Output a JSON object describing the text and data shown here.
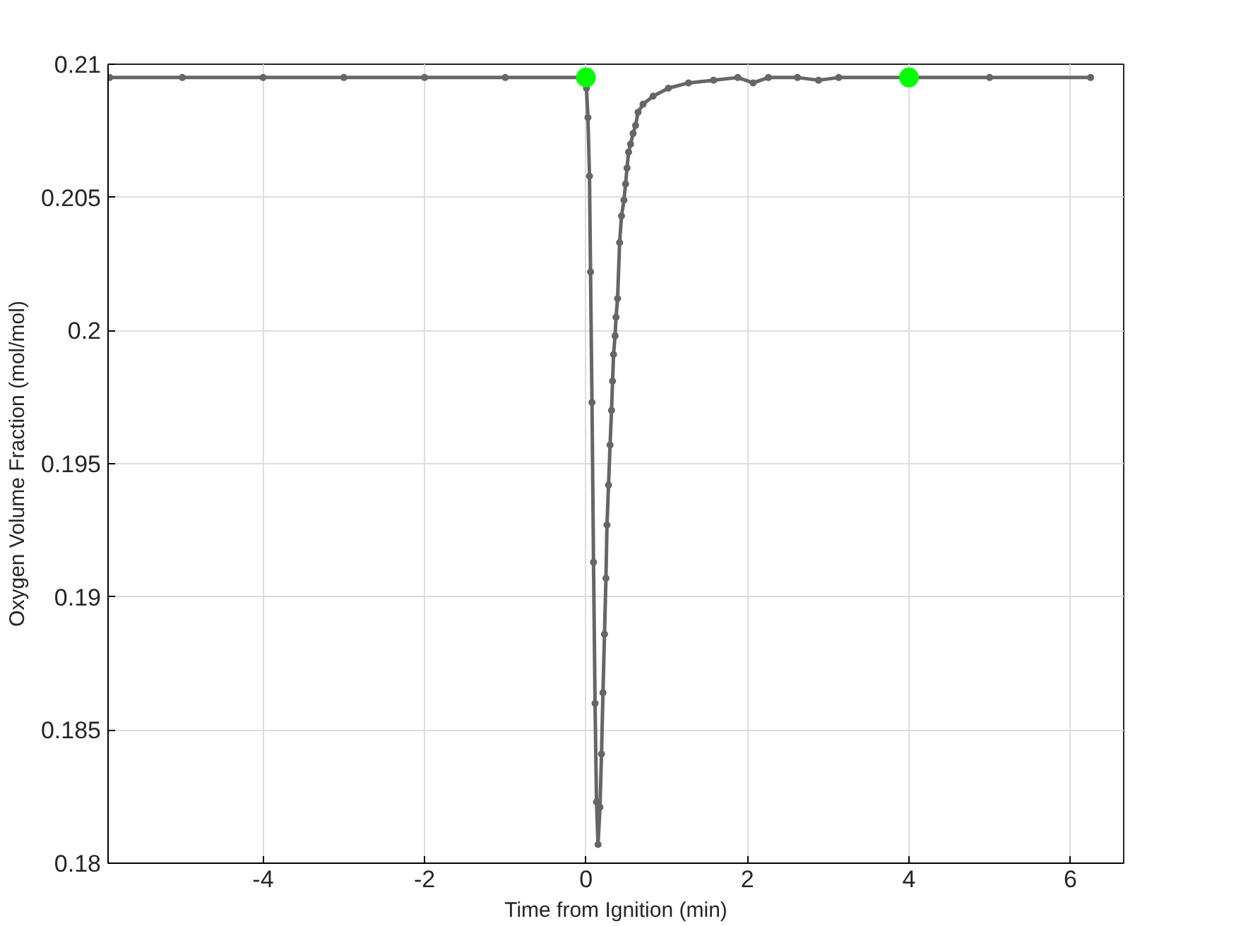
{
  "chart_data": {
    "type": "line",
    "xlabel": "Time from Ignition (min)",
    "ylabel": "Oxygen Volume Fraction (mol/mol)",
    "xlim": [
      -5.92,
      6.66
    ],
    "ylim": [
      0.18,
      0.21
    ],
    "xticks": [
      -4,
      -2,
      0,
      2,
      4,
      6
    ],
    "yticks": [
      0.18,
      0.185,
      0.19,
      0.195,
      0.2,
      0.205,
      0.21
    ],
    "grid": true,
    "series": [
      {
        "color": "#666666",
        "marker": "circle",
        "line_style": "solid",
        "x": [
          -5.9,
          -5,
          -4,
          -3,
          -2,
          -1,
          0,
          0.006,
          0.024,
          0.043,
          0.056,
          0.074,
          0.093,
          0.112,
          0.13,
          0.149,
          0.173,
          0.192,
          0.21,
          0.229,
          0.247,
          0.26,
          0.279,
          0.298,
          0.316,
          0.329,
          0.341,
          0.36,
          0.372,
          0.391,
          0.416,
          0.44,
          0.47,
          0.49,
          0.508,
          0.527,
          0.552,
          0.583,
          0.614,
          0.645,
          0.707,
          0.831,
          1.02,
          1.27,
          1.58,
          1.88,
          2.07,
          2.26,
          2.62,
          2.88,
          3.13,
          4,
          5,
          6.25
        ],
        "values": [
          0.2095,
          0.2095,
          0.2095,
          0.2095,
          0.2095,
          0.2095,
          0.2095,
          0.2091,
          0.208,
          0.2058,
          0.2022,
          0.1973,
          0.1913,
          0.186,
          0.1823,
          0.1807,
          0.1821,
          0.1841,
          0.1864,
          0.1886,
          0.1907,
          0.1927,
          0.1942,
          0.1957,
          0.197,
          0.1981,
          0.1991,
          0.1998,
          0.2005,
          0.2012,
          0.2033,
          0.2043,
          0.2049,
          0.2055,
          0.2061,
          0.2067,
          0.207,
          0.2074,
          0.2077,
          0.2082,
          0.2085,
          0.2088,
          0.2091,
          0.2093,
          0.2094,
          0.2095,
          0.2093,
          0.2095,
          0.2095,
          0.2094,
          0.2095,
          0.2095,
          0.2095,
          0.2095
        ]
      },
      {
        "type": "scatter",
        "color": "#00ff00",
        "marker": "circle",
        "x": [
          0,
          4
        ],
        "values": [
          0.2095,
          0.2095
        ]
      }
    ]
  }
}
